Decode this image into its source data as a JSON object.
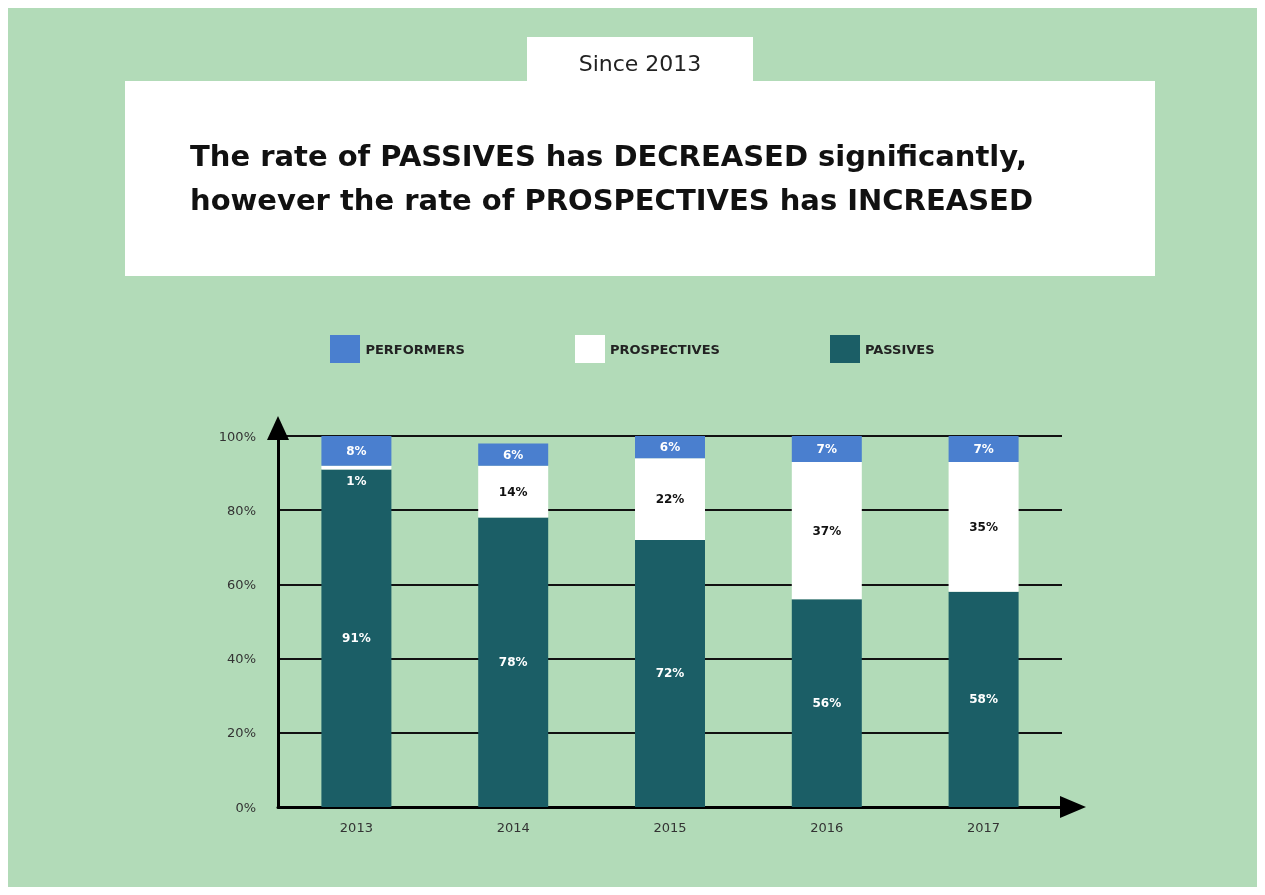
{
  "chart_data": {
    "type": "bar",
    "title": "The rate of PASSIVES has DECREASED significantly, however the rate of PROSPECTIVES has INCREASED",
    "subtitle": "Since 2013",
    "categories": [
      "2013",
      "2014",
      "2015",
      "2016",
      "2017"
    ],
    "stacked": true,
    "series": [
      {
        "name": "PASSIVES",
        "color": "#1b5e66",
        "values": [
          91,
          78,
          72,
          56,
          58
        ],
        "value_labels": [
          "91%",
          "78%",
          "72%",
          "56%",
          "58%"
        ]
      },
      {
        "name": "PROSPECTIVES",
        "color": "#ffffff",
        "values": [
          1,
          14,
          22,
          37,
          35
        ],
        "value_labels": [
          "1%",
          "14%",
          "22%",
          "37%",
          "35%"
        ]
      },
      {
        "name": "PERFORMERS",
        "color": "#4a7fcf",
        "values": [
          8,
          6,
          6,
          7,
          7
        ],
        "value_labels": [
          "8%",
          "6%",
          "6%",
          "7%",
          "7%"
        ]
      }
    ],
    "ylim": [
      0,
      100
    ],
    "yticks": [
      {
        "value": 0,
        "label": "0%"
      },
      {
        "value": 20,
        "label": "20%"
      },
      {
        "value": 40,
        "label": "40%"
      },
      {
        "value": 60,
        "label": "60%"
      },
      {
        "value": 80,
        "label": "80%"
      },
      {
        "value": 100,
        "label": "100%"
      }
    ],
    "grid": "y",
    "legend": "top"
  }
}
